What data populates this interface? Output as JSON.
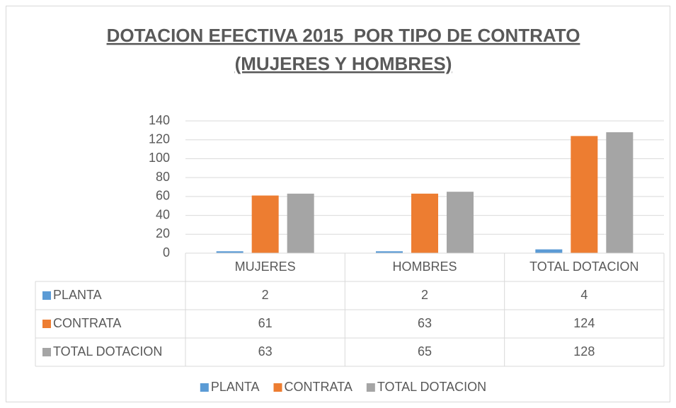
{
  "chart_data": {
    "type": "bar",
    "title": [
      "DOTACION EFECTIVA 2015  POR TIPO DE CONTRATO",
      "(MUJERES Y HOMBRES)"
    ],
    "categories": [
      "MUJERES",
      "HOMBRES",
      "TOTAL DOTACION"
    ],
    "series": [
      {
        "name": "PLANTA",
        "color": "#5b9bd5",
        "values": [
          2,
          2,
          4
        ]
      },
      {
        "name": "CONTRATA",
        "color": "#ed7d31",
        "values": [
          61,
          63,
          124
        ]
      },
      {
        "name": "TOTAL DOTACION",
        "color": "#a5a5a5",
        "values": [
          63,
          65,
          128
        ]
      }
    ],
    "ylim": [
      0,
      140
    ],
    "yticks": [
      0,
      20,
      40,
      60,
      80,
      100,
      120,
      140
    ],
    "grid": true,
    "data_table": true,
    "legend": "bottom"
  }
}
